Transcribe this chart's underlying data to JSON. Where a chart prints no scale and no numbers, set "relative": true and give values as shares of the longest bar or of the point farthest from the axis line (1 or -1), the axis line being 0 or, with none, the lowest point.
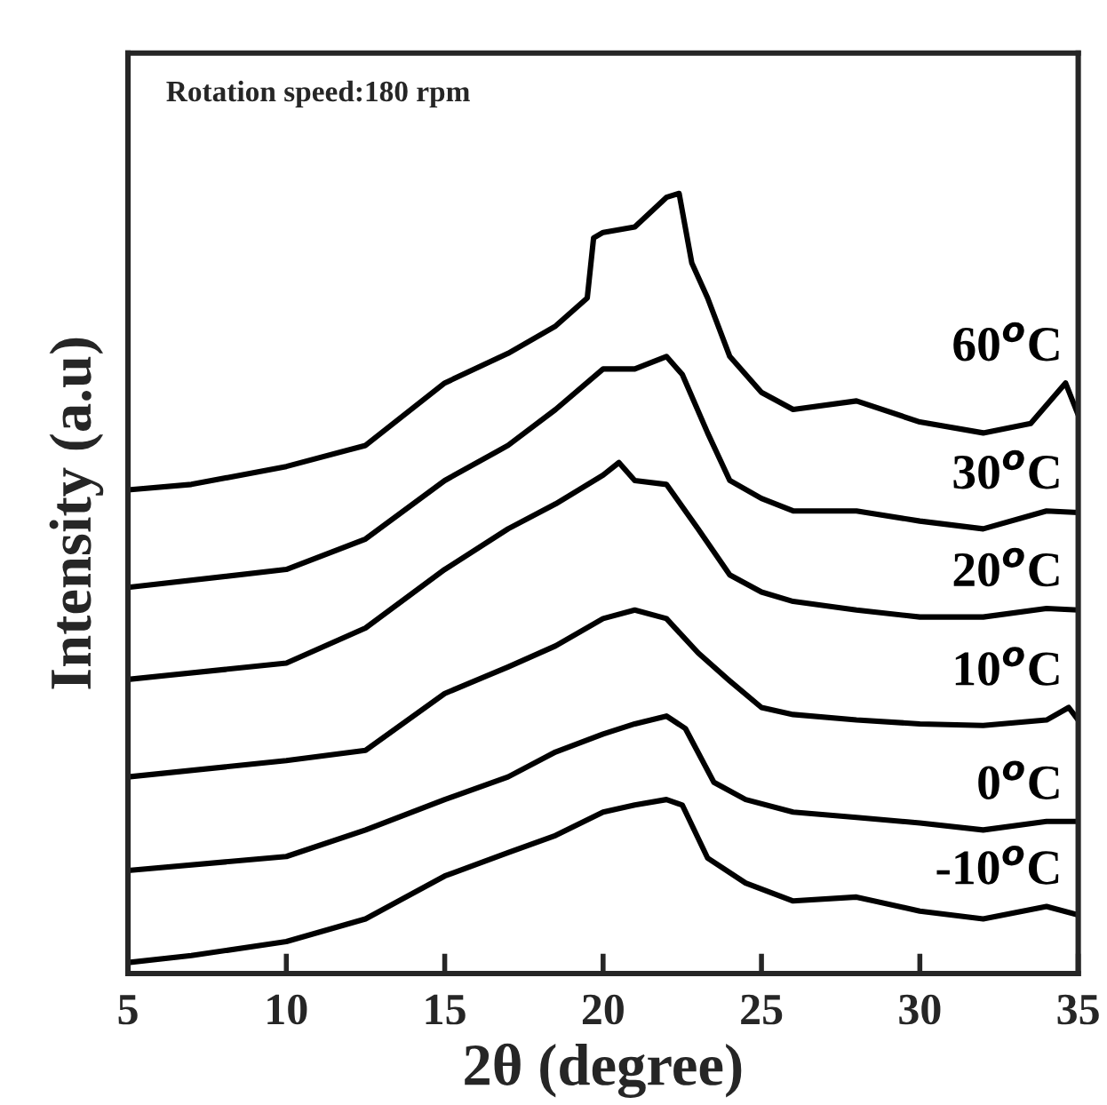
{
  "chart_data": {
    "type": "line",
    "relative": true,
    "xlabel": "2θ (degree)",
    "ylabel": "Intensity (a.u)",
    "annotations": [
      "Rotation speed:180 rpm"
    ],
    "xlim": [
      5,
      35
    ],
    "xticks": [
      5,
      10,
      15,
      20,
      25,
      30,
      35
    ],
    "grid": false,
    "legend": false,
    "marker": "none",
    "line_style": "solid",
    "series": [
      {
        "name": "60$^{o}$C",
        "color": "#000000",
        "x": [
          5,
          7,
          10,
          12.5,
          15,
          17,
          18.5,
          19.5,
          19.7,
          20,
          21,
          22,
          22.4,
          22.8,
          23.3,
          24,
          25,
          26,
          28,
          30,
          32,
          33.5,
          34.6,
          35
        ],
        "values": [
          0.62,
          0.627,
          0.65,
          0.677,
          0.757,
          0.795,
          0.83,
          0.866,
          0.943,
          0.95,
          0.957,
          0.995,
          1.0,
          0.911,
          0.866,
          0.791,
          0.745,
          0.723,
          0.734,
          0.707,
          0.693,
          0.705,
          0.757,
          0.716
        ]
      },
      {
        "name": "30$^{o}$C",
        "color": "#000000",
        "x": [
          5,
          10,
          12.5,
          15,
          17,
          18.5,
          20,
          21,
          22,
          22.5,
          23.3,
          24,
          25,
          26,
          28,
          30,
          32,
          34,
          35
        ],
        "values": [
          0.495,
          0.518,
          0.557,
          0.632,
          0.677,
          0.723,
          0.775,
          0.775,
          0.791,
          0.768,
          0.693,
          0.632,
          0.609,
          0.593,
          0.593,
          0.58,
          0.57,
          0.593,
          0.591
        ]
      },
      {
        "name": "20$^{o}$C",
        "color": "#000000",
        "x": [
          5,
          10,
          12.5,
          15,
          17,
          18.5,
          20,
          20.5,
          21,
          22,
          23,
          24,
          25,
          26,
          28,
          30,
          32,
          34,
          35
        ],
        "values": [
          0.377,
          0.398,
          0.443,
          0.518,
          0.57,
          0.602,
          0.639,
          0.655,
          0.632,
          0.627,
          0.57,
          0.511,
          0.489,
          0.477,
          0.466,
          0.457,
          0.457,
          0.468,
          0.466
        ]
      },
      {
        "name": "10$^{o}$C",
        "color": "#000000",
        "x": [
          5,
          10,
          12.5,
          15,
          17,
          18.5,
          20,
          21,
          22,
          23,
          24,
          25,
          26,
          28,
          30,
          32,
          34,
          34.7,
          35
        ],
        "values": [
          0.252,
          0.273,
          0.286,
          0.359,
          0.393,
          0.42,
          0.455,
          0.466,
          0.455,
          0.411,
          0.375,
          0.341,
          0.332,
          0.325,
          0.32,
          0.318,
          0.325,
          0.341,
          0.325
        ]
      },
      {
        "name": "0$^{o}$C",
        "color": "#000000",
        "x": [
          5,
          10,
          12.5,
          15,
          17,
          18.5,
          20,
          21,
          22,
          22.6,
          23.5,
          24.5,
          26,
          28,
          30,
          32,
          34,
          35
        ],
        "values": [
          0.132,
          0.15,
          0.184,
          0.223,
          0.252,
          0.284,
          0.307,
          0.32,
          0.33,
          0.314,
          0.245,
          0.223,
          0.207,
          0.2,
          0.193,
          0.184,
          0.195,
          0.195
        ]
      },
      {
        "name": "-10$^{o}$C",
        "color": "#000000",
        "x": [
          5,
          7,
          10,
          12.5,
          15,
          17,
          18.5,
          20,
          21,
          22,
          22.5,
          23.3,
          24.5,
          26,
          28,
          30,
          32,
          34,
          35
        ],
        "values": [
          0.014,
          0.023,
          0.041,
          0.07,
          0.125,
          0.155,
          0.177,
          0.207,
          0.216,
          0.223,
          0.216,
          0.148,
          0.116,
          0.093,
          0.098,
          0.08,
          0.07,
          0.086,
          0.075
        ]
      }
    ]
  }
}
